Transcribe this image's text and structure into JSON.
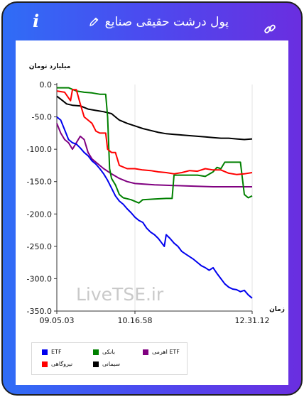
{
  "header": {
    "title": "پول درشت حقیقی صنایع",
    "info_glyph": "i"
  },
  "chart_data": {
    "type": "line",
    "ylabel": "میلیارد تومان",
    "xlabel": "زمان",
    "ylim": [
      -350,
      0
    ],
    "yticks": [
      "0.0",
      "-50.0",
      "-100.0",
      "-150.0",
      "-200.0",
      "-250.0",
      "-300.0",
      "-350.0"
    ],
    "xticks": [
      "09.05.03",
      "10.16.58",
      "12.31.12"
    ],
    "watermark": "LiveTSE.ir",
    "grid": "vertical",
    "legend_position": "bottom-left",
    "series": [
      {
        "name": "ETF",
        "color": "#0000ee",
        "values": [
          [
            0,
            -50
          ],
          [
            2,
            -55
          ],
          [
            4,
            -70
          ],
          [
            6,
            -85
          ],
          [
            8,
            -90
          ],
          [
            10,
            -92
          ],
          [
            12,
            -98
          ],
          [
            14,
            -105
          ],
          [
            16,
            -110
          ],
          [
            18,
            -118
          ],
          [
            20,
            -123
          ],
          [
            22,
            -130
          ],
          [
            24,
            -138
          ],
          [
            26,
            -148
          ],
          [
            28,
            -160
          ],
          [
            30,
            -172
          ],
          [
            32,
            -180
          ],
          [
            34,
            -185
          ],
          [
            36,
            -192
          ],
          [
            38,
            -198
          ],
          [
            40,
            -205
          ],
          [
            42,
            -210
          ],
          [
            44,
            -213
          ],
          [
            46,
            -222
          ],
          [
            48,
            -228
          ],
          [
            50,
            -232
          ],
          [
            52,
            -238
          ],
          [
            54,
            -246
          ],
          [
            55,
            -250
          ],
          [
            56,
            -232
          ],
          [
            58,
            -238
          ],
          [
            60,
            -245
          ],
          [
            62,
            -250
          ],
          [
            64,
            -258
          ],
          [
            66,
            -262
          ],
          [
            68,
            -266
          ],
          [
            70,
            -270
          ],
          [
            72,
            -275
          ],
          [
            74,
            -280
          ],
          [
            76,
            -283
          ],
          [
            78,
            -287
          ],
          [
            80,
            -283
          ],
          [
            82,
            -292
          ],
          [
            84,
            -300
          ],
          [
            86,
            -308
          ],
          [
            88,
            -313
          ],
          [
            90,
            -316
          ],
          [
            92,
            -317
          ],
          [
            94,
            -320
          ],
          [
            96,
            -318
          ],
          [
            98,
            -325
          ],
          [
            100,
            -330
          ]
        ]
      },
      {
        "name": "بانکی",
        "color": "#008000",
        "values": [
          [
            0,
            -5
          ],
          [
            6,
            -5
          ],
          [
            10,
            -10
          ],
          [
            14,
            -12
          ],
          [
            18,
            -13
          ],
          [
            22,
            -15
          ],
          [
            25,
            -15
          ],
          [
            26,
            -50
          ],
          [
            27,
            -130
          ],
          [
            28,
            -145
          ],
          [
            30,
            -155
          ],
          [
            32,
            -170
          ],
          [
            34,
            -175
          ],
          [
            38,
            -178
          ],
          [
            42,
            -183
          ],
          [
            44,
            -178
          ],
          [
            50,
            -177
          ],
          [
            56,
            -176
          ],
          [
            59,
            -176
          ],
          [
            60,
            -140
          ],
          [
            64,
            -140
          ],
          [
            68,
            -140
          ],
          [
            72,
            -140
          ],
          [
            76,
            -142
          ],
          [
            80,
            -135
          ],
          [
            82,
            -128
          ],
          [
            84,
            -130
          ],
          [
            86,
            -120
          ],
          [
            90,
            -120
          ],
          [
            94,
            -120
          ],
          [
            96,
            -170
          ],
          [
            98,
            -175
          ],
          [
            100,
            -172
          ]
        ]
      },
      {
        "name": "اهرمی ETF",
        "color": "#800080",
        "values": [
          [
            0,
            -60
          ],
          [
            2,
            -75
          ],
          [
            4,
            -85
          ],
          [
            6,
            -90
          ],
          [
            8,
            -100
          ],
          [
            10,
            -90
          ],
          [
            12,
            -80
          ],
          [
            14,
            -85
          ],
          [
            16,
            -105
          ],
          [
            18,
            -115
          ],
          [
            20,
            -120
          ],
          [
            24,
            -130
          ],
          [
            28,
            -138
          ],
          [
            32,
            -145
          ],
          [
            36,
            -150
          ],
          [
            40,
            -153
          ],
          [
            50,
            -155
          ],
          [
            60,
            -156
          ],
          [
            70,
            -157
          ],
          [
            80,
            -158
          ],
          [
            90,
            -158
          ],
          [
            100,
            -158
          ]
        ]
      },
      {
        "name": "نیروگاهی",
        "color": "#ff0000",
        "values": [
          [
            0,
            -10
          ],
          [
            4,
            -12
          ],
          [
            7,
            -25
          ],
          [
            8,
            -8
          ],
          [
            10,
            -8
          ],
          [
            12,
            -30
          ],
          [
            14,
            -50
          ],
          [
            16,
            -55
          ],
          [
            18,
            -60
          ],
          [
            20,
            -72
          ],
          [
            22,
            -75
          ],
          [
            25,
            -75
          ],
          [
            26,
            -100
          ],
          [
            28,
            -105
          ],
          [
            30,
            -105
          ],
          [
            32,
            -125
          ],
          [
            36,
            -130
          ],
          [
            40,
            -130
          ],
          [
            44,
            -132
          ],
          [
            48,
            -133
          ],
          [
            52,
            -135
          ],
          [
            56,
            -136
          ],
          [
            60,
            -138
          ],
          [
            64,
            -136
          ],
          [
            68,
            -133
          ],
          [
            72,
            -134
          ],
          [
            76,
            -130
          ],
          [
            80,
            -132
          ],
          [
            84,
            -132
          ],
          [
            88,
            -137
          ],
          [
            92,
            -139
          ],
          [
            96,
            -138
          ],
          [
            100,
            -136
          ]
        ]
      },
      {
        "name": "سیمانی",
        "color": "#000000",
        "values": [
          [
            0,
            -18
          ],
          [
            3,
            -25
          ],
          [
            5,
            -30
          ],
          [
            8,
            -32
          ],
          [
            12,
            -33
          ],
          [
            16,
            -38
          ],
          [
            20,
            -40
          ],
          [
            24,
            -42
          ],
          [
            28,
            -45
          ],
          [
            30,
            -50
          ],
          [
            32,
            -55
          ],
          [
            36,
            -60
          ],
          [
            40,
            -64
          ],
          [
            44,
            -68
          ],
          [
            48,
            -71
          ],
          [
            52,
            -74
          ],
          [
            56,
            -76
          ],
          [
            60,
            -77
          ],
          [
            64,
            -78
          ],
          [
            68,
            -79
          ],
          [
            72,
            -80
          ],
          [
            76,
            -81
          ],
          [
            80,
            -82
          ],
          [
            84,
            -83
          ],
          [
            88,
            -83
          ],
          [
            92,
            -84
          ],
          [
            96,
            -85
          ],
          [
            100,
            -84
          ]
        ]
      }
    ]
  }
}
